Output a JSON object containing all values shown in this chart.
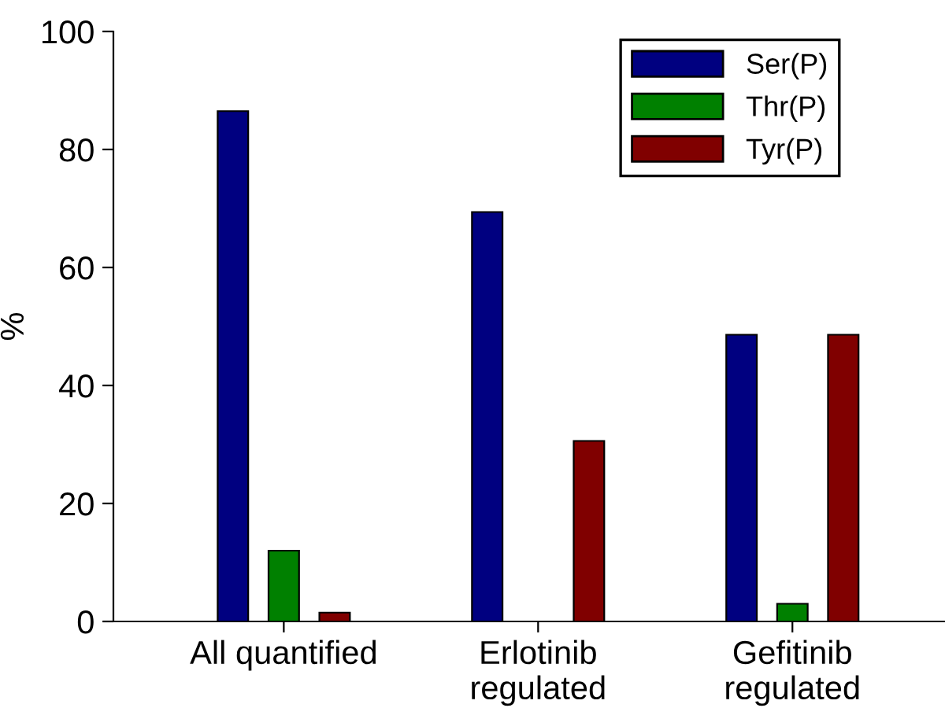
{
  "chart_data": {
    "type": "bar",
    "ylabel": "%",
    "categories": [
      "All quantified",
      "Erlotinib\nregulated",
      "Gefitinib\nregulated"
    ],
    "series": [
      {
        "name": "Ser(P)",
        "color": "#000080",
        "values": [
          86.5,
          69.4,
          48.6
        ]
      },
      {
        "name": "Thr(P)",
        "color": "#008000",
        "values": [
          12.0,
          0,
          3.0
        ]
      },
      {
        "name": "Tyr(P)",
        "color": "#800000",
        "values": [
          1.5,
          30.6,
          48.6
        ]
      }
    ],
    "ylim": [
      0,
      100
    ],
    "yticks": [
      0,
      20,
      40,
      60,
      80,
      100
    ],
    "grid": false,
    "legend": "top right"
  }
}
